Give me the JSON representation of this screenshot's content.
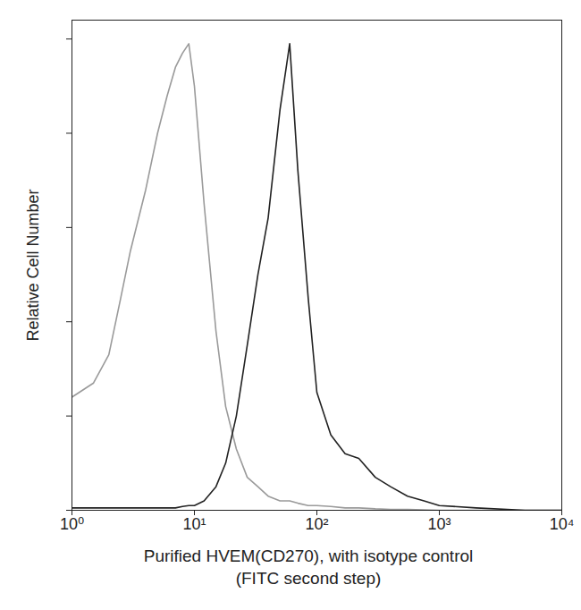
{
  "chart_data": {
    "type": "line",
    "y_label": "Relative Cell Number",
    "x_label": [
      "Purified HVEM(CD270), with isotype control",
      "(FITC second step)"
    ],
    "log": "x",
    "grid": false,
    "tick_labels": "x",
    "xlim": [
      1,
      10000
    ],
    "xticks": [
      {
        "value": 1,
        "label": "10⁰"
      },
      {
        "value": 10,
        "label": "10¹"
      },
      {
        "value": 100,
        "label": "10²"
      },
      {
        "value": 1000,
        "label": "10³"
      },
      {
        "value": 10000,
        "label": "10⁴"
      }
    ],
    "ylim": [
      0,
      104
    ],
    "yticks": [
      0,
      20,
      40,
      60,
      80,
      100
    ],
    "x": [
      1,
      1.5,
      2,
      2.5,
      3,
      4,
      5,
      6,
      7,
      8,
      9,
      10,
      12,
      15,
      18,
      22,
      27,
      33,
      40,
      50,
      60,
      70,
      85,
      100,
      130,
      170,
      220,
      300,
      400,
      550,
      750,
      1000,
      2000,
      5000,
      10000
    ],
    "series": [
      {
        "color": "#9a9a9a",
        "values": [
          24,
          27,
          33,
          45,
          55,
          68,
          80,
          88,
          94,
          97,
          99,
          90,
          65,
          38,
          22,
          13,
          7,
          5,
          3,
          2,
          2,
          1.5,
          1,
          1,
          0.8,
          0.5,
          0.5,
          0.3,
          0.2,
          0.2,
          0.1,
          0,
          0,
          0,
          0
        ]
      },
      {
        "color": "#222222",
        "values": [
          0.5,
          0.5,
          0.5,
          0.5,
          0.5,
          0.5,
          0.5,
          0.5,
          0.5,
          0.8,
          1,
          1,
          2,
          5,
          10,
          20,
          35,
          50,
          62,
          85,
          99,
          72,
          45,
          25,
          16,
          12,
          11,
          7,
          5,
          3,
          2,
          1,
          0.5,
          0,
          0
        ]
      }
    ]
  }
}
